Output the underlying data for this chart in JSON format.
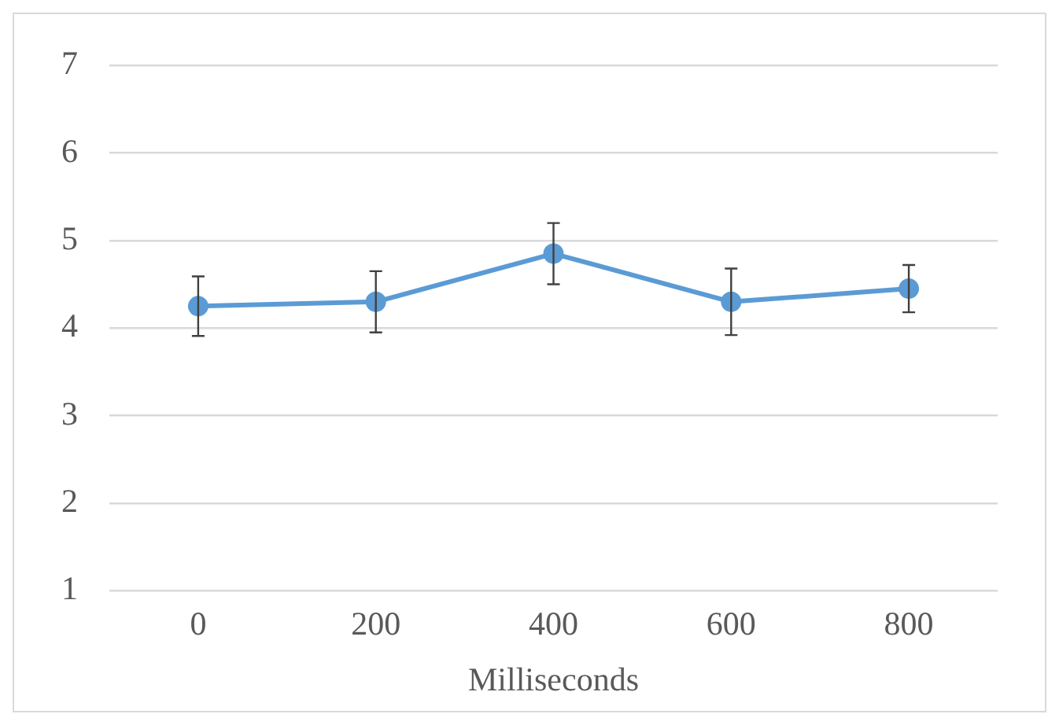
{
  "chart_data": {
    "type": "line",
    "xlabel": "Milliseconds",
    "categories": [
      "0",
      "200",
      "400",
      "600",
      "800"
    ],
    "series": [
      {
        "color": "#5b9bd5",
        "values": [
          4.25,
          4.3,
          4.85,
          4.3,
          4.45
        ],
        "errors": [
          0.34,
          0.35,
          0.35,
          0.38,
          0.27
        ]
      }
    ],
    "ylim": [
      1,
      7
    ],
    "yticks": [
      1,
      2,
      3,
      4,
      5,
      6,
      7
    ],
    "grid": "y",
    "legend": false,
    "marker": "circle",
    "line_style": "solid"
  }
}
